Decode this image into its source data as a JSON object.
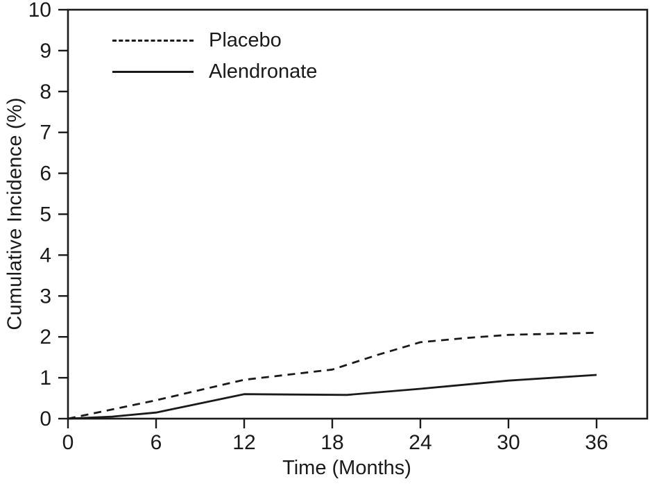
{
  "chart_data": {
    "type": "line",
    "title": "",
    "xlabel": "Time (Months)",
    "ylabel": "Cumulative Incidence (%)",
    "xlim": [
      0,
      39.45
    ],
    "ylim": [
      0,
      10
    ],
    "x_ticks": [
      0,
      6,
      12,
      18,
      24,
      30,
      36
    ],
    "y_ticks": [
      0,
      1,
      2,
      3,
      4,
      5,
      6,
      7,
      8,
      9,
      10
    ],
    "grid": false,
    "legend_position": "top-left-inside",
    "series": [
      {
        "name": "Placebo",
        "style": "dashed",
        "color": "#1a1a1a",
        "points": [
          [
            0,
            0
          ],
          [
            6,
            0.45
          ],
          [
            12,
            0.95
          ],
          [
            18,
            1.2
          ],
          [
            21,
            1.55
          ],
          [
            24,
            1.87
          ],
          [
            27,
            1.97
          ],
          [
            30,
            2.05
          ],
          [
            36,
            2.1
          ]
        ]
      },
      {
        "name": "Alendronate",
        "style": "solid",
        "color": "#1a1a1a",
        "points": [
          [
            0,
            0
          ],
          [
            3,
            0.05
          ],
          [
            6,
            0.15
          ],
          [
            12,
            0.6
          ],
          [
            15,
            0.59
          ],
          [
            19,
            0.58
          ],
          [
            24,
            0.73
          ],
          [
            30,
            0.93
          ],
          [
            36,
            1.07
          ]
        ]
      }
    ]
  },
  "colors": {
    "line": "#1a1a1a",
    "background": "#ffffff"
  }
}
